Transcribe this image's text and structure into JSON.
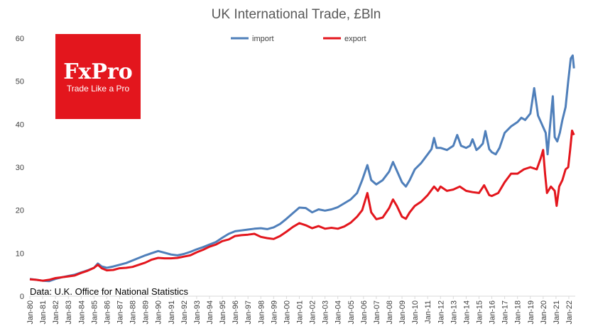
{
  "chart_data": {
    "type": "line",
    "title": "UK International Trade, £Bln",
    "xlabel": "",
    "ylabel": "",
    "ylim": [
      0,
      60
    ],
    "yticks": [
      0,
      10,
      20,
      30,
      40,
      50,
      60
    ],
    "grid": false,
    "legend_position": "top",
    "x_start_year": 1980,
    "x_end": 2022.5,
    "x_tick_labels": [
      "Jan-80",
      "Jan-81",
      "Jan-82",
      "Jan-83",
      "Jan-84",
      "Jan-85",
      "Jan-86",
      "Jan-87",
      "Jan-88",
      "Jan-89",
      "Jan-90",
      "Jan-91",
      "Jan-92",
      "Jan-93",
      "Jan-94",
      "Jan-95",
      "Jan-96",
      "Jan-97",
      "Jan-98",
      "Jan-99",
      "Jan-00",
      "Jan-01",
      "Jan-02",
      "Jan-03",
      "Jan-04",
      "Jan-05",
      "Jan-06",
      "Jan-07",
      "Jan-08",
      "Jan-09",
      "Jan-10",
      "Jan-11",
      "Jan-12",
      "Jan-13",
      "Jan-14",
      "Jan-15",
      "Jan-16",
      "Jan-17",
      "Jan-18",
      "Jan-19",
      "Jan-20",
      "Jan-21",
      "Jan-22"
    ],
    "series": [
      {
        "name": "import",
        "color": "#4f7fba",
        "points": [
          [
            1980.0,
            4.0
          ],
          [
            1980.5,
            3.8
          ],
          [
            1981.0,
            3.6
          ],
          [
            1981.5,
            3.5
          ],
          [
            1982.0,
            4.0
          ],
          [
            1982.5,
            4.4
          ],
          [
            1983.0,
            4.7
          ],
          [
            1983.5,
            5.0
          ],
          [
            1984.0,
            5.5
          ],
          [
            1984.5,
            6.0
          ],
          [
            1985.0,
            6.6
          ],
          [
            1985.3,
            7.6
          ],
          [
            1985.6,
            6.9
          ],
          [
            1986.0,
            6.6
          ],
          [
            1986.5,
            6.9
          ],
          [
            1987.0,
            7.3
          ],
          [
            1987.5,
            7.7
          ],
          [
            1988.0,
            8.3
          ],
          [
            1988.5,
            8.9
          ],
          [
            1989.0,
            9.5
          ],
          [
            1989.5,
            10.0
          ],
          [
            1990.0,
            10.5
          ],
          [
            1990.5,
            10.1
          ],
          [
            1991.0,
            9.7
          ],
          [
            1991.5,
            9.5
          ],
          [
            1992.0,
            9.8
          ],
          [
            1992.5,
            10.3
          ],
          [
            1993.0,
            10.9
          ],
          [
            1993.5,
            11.4
          ],
          [
            1994.0,
            12.0
          ],
          [
            1994.5,
            12.6
          ],
          [
            1995.0,
            13.6
          ],
          [
            1995.5,
            14.5
          ],
          [
            1996.0,
            15.1
          ],
          [
            1996.5,
            15.3
          ],
          [
            1997.0,
            15.5
          ],
          [
            1997.5,
            15.7
          ],
          [
            1998.0,
            15.8
          ],
          [
            1998.5,
            15.6
          ],
          [
            1999.0,
            16.0
          ],
          [
            1999.5,
            16.8
          ],
          [
            2000.0,
            18.0
          ],
          [
            2000.5,
            19.3
          ],
          [
            2001.0,
            20.6
          ],
          [
            2001.5,
            20.5
          ],
          [
            2002.0,
            19.5
          ],
          [
            2002.5,
            20.2
          ],
          [
            2003.0,
            19.9
          ],
          [
            2003.5,
            20.2
          ],
          [
            2004.0,
            20.7
          ],
          [
            2004.5,
            21.6
          ],
          [
            2005.0,
            22.5
          ],
          [
            2005.5,
            24.0
          ],
          [
            2005.9,
            27.0
          ],
          [
            2006.3,
            30.5
          ],
          [
            2006.6,
            27.0
          ],
          [
            2007.0,
            26.0
          ],
          [
            2007.5,
            27.0
          ],
          [
            2008.0,
            29.0
          ],
          [
            2008.3,
            31.2
          ],
          [
            2008.6,
            29.2
          ],
          [
            2009.0,
            26.5
          ],
          [
            2009.3,
            25.5
          ],
          [
            2009.6,
            27.0
          ],
          [
            2010.0,
            29.5
          ],
          [
            2010.5,
            31.0
          ],
          [
            2011.0,
            33.0
          ],
          [
            2011.3,
            34.2
          ],
          [
            2011.5,
            36.8
          ],
          [
            2011.7,
            34.5
          ],
          [
            2012.0,
            34.5
          ],
          [
            2012.5,
            34.0
          ],
          [
            2013.0,
            35.0
          ],
          [
            2013.3,
            37.5
          ],
          [
            2013.6,
            35.0
          ],
          [
            2014.0,
            34.5
          ],
          [
            2014.3,
            35.0
          ],
          [
            2014.5,
            36.5
          ],
          [
            2014.8,
            34.0
          ],
          [
            2015.0,
            34.5
          ],
          [
            2015.3,
            35.5
          ],
          [
            2015.5,
            38.4
          ],
          [
            2015.8,
            34.2
          ],
          [
            2016.0,
            33.5
          ],
          [
            2016.3,
            33.0
          ],
          [
            2016.6,
            34.5
          ],
          [
            2017.0,
            38.0
          ],
          [
            2017.5,
            39.5
          ],
          [
            2018.0,
            40.5
          ],
          [
            2018.3,
            41.5
          ],
          [
            2018.6,
            41.0
          ],
          [
            2019.0,
            42.5
          ],
          [
            2019.3,
            48.4
          ],
          [
            2019.6,
            42.0
          ],
          [
            2019.9,
            40.0
          ],
          [
            2020.2,
            38.0
          ],
          [
            2020.35,
            33.0
          ],
          [
            2020.5,
            38.5
          ],
          [
            2020.75,
            46.5
          ],
          [
            2020.9,
            37.0
          ],
          [
            2021.1,
            36.0
          ],
          [
            2021.3,
            38.0
          ],
          [
            2021.5,
            41.0
          ],
          [
            2021.75,
            44.0
          ],
          [
            2021.95,
            50.0
          ],
          [
            2022.15,
            55.3
          ],
          [
            2022.3,
            56.0
          ],
          [
            2022.4,
            53.0
          ]
        ]
      },
      {
        "name": "export",
        "color": "#e3161d",
        "points": [
          [
            1980.0,
            3.9
          ],
          [
            1980.5,
            3.8
          ],
          [
            1981.0,
            3.6
          ],
          [
            1981.5,
            3.8
          ],
          [
            1982.0,
            4.2
          ],
          [
            1982.5,
            4.4
          ],
          [
            1983.0,
            4.6
          ],
          [
            1983.5,
            4.8
          ],
          [
            1984.0,
            5.4
          ],
          [
            1984.5,
            5.9
          ],
          [
            1985.0,
            6.6
          ],
          [
            1985.3,
            7.3
          ],
          [
            1985.6,
            6.5
          ],
          [
            1986.0,
            6.0
          ],
          [
            1986.5,
            6.1
          ],
          [
            1987.0,
            6.5
          ],
          [
            1987.5,
            6.6
          ],
          [
            1988.0,
            6.8
          ],
          [
            1988.5,
            7.3
          ],
          [
            1989.0,
            7.8
          ],
          [
            1989.5,
            8.5
          ],
          [
            1990.0,
            8.9
          ],
          [
            1990.5,
            8.8
          ],
          [
            1991.0,
            8.8
          ],
          [
            1991.5,
            8.9
          ],
          [
            1992.0,
            9.2
          ],
          [
            1992.5,
            9.5
          ],
          [
            1993.0,
            10.2
          ],
          [
            1993.5,
            10.8
          ],
          [
            1994.0,
            11.5
          ],
          [
            1994.5,
            12.0
          ],
          [
            1995.0,
            12.8
          ],
          [
            1995.5,
            13.2
          ],
          [
            1996.0,
            14.0
          ],
          [
            1996.5,
            14.2
          ],
          [
            1997.0,
            14.3
          ],
          [
            1997.5,
            14.5
          ],
          [
            1998.0,
            13.8
          ],
          [
            1998.5,
            13.5
          ],
          [
            1999.0,
            13.3
          ],
          [
            1999.5,
            14.0
          ],
          [
            2000.0,
            15.0
          ],
          [
            2000.5,
            16.1
          ],
          [
            2001.0,
            17.0
          ],
          [
            2001.5,
            16.5
          ],
          [
            2002.0,
            15.8
          ],
          [
            2002.5,
            16.3
          ],
          [
            2003.0,
            15.7
          ],
          [
            2003.5,
            15.9
          ],
          [
            2004.0,
            15.7
          ],
          [
            2004.5,
            16.2
          ],
          [
            2005.0,
            17.1
          ],
          [
            2005.5,
            18.5
          ],
          [
            2005.9,
            20.0
          ],
          [
            2006.3,
            24.0
          ],
          [
            2006.6,
            19.5
          ],
          [
            2007.0,
            17.9
          ],
          [
            2007.5,
            18.3
          ],
          [
            2008.0,
            20.5
          ],
          [
            2008.3,
            22.5
          ],
          [
            2008.6,
            21.0
          ],
          [
            2009.0,
            18.5
          ],
          [
            2009.3,
            18.0
          ],
          [
            2009.6,
            19.5
          ],
          [
            2010.0,
            21.0
          ],
          [
            2010.5,
            22.0
          ],
          [
            2011.0,
            23.5
          ],
          [
            2011.5,
            25.5
          ],
          [
            2011.8,
            24.5
          ],
          [
            2012.0,
            25.5
          ],
          [
            2012.5,
            24.5
          ],
          [
            2013.0,
            24.8
          ],
          [
            2013.5,
            25.5
          ],
          [
            2014.0,
            24.5
          ],
          [
            2014.5,
            24.2
          ],
          [
            2015.0,
            24.0
          ],
          [
            2015.4,
            25.8
          ],
          [
            2015.8,
            23.5
          ],
          [
            2016.0,
            23.3
          ],
          [
            2016.5,
            24.0
          ],
          [
            2017.0,
            26.5
          ],
          [
            2017.5,
            28.5
          ],
          [
            2018.0,
            28.5
          ],
          [
            2018.5,
            29.5
          ],
          [
            2019.0,
            30.0
          ],
          [
            2019.5,
            29.5
          ],
          [
            2019.8,
            32.0
          ],
          [
            2020.0,
            34.0
          ],
          [
            2020.15,
            28.5
          ],
          [
            2020.3,
            24.0
          ],
          [
            2020.6,
            25.5
          ],
          [
            2020.9,
            24.5
          ],
          [
            2021.05,
            21.0
          ],
          [
            2021.25,
            25.5
          ],
          [
            2021.5,
            27.0
          ],
          [
            2021.75,
            29.5
          ],
          [
            2021.95,
            30.0
          ],
          [
            2022.1,
            34.0
          ],
          [
            2022.25,
            38.5
          ],
          [
            2022.4,
            37.5
          ]
        ]
      }
    ],
    "annotation": "Data: U.K. Office for National Statistics"
  },
  "logo": {
    "brand": "FxPro",
    "tagline": "Trade Like a Pro",
    "color": "#e3161d"
  }
}
